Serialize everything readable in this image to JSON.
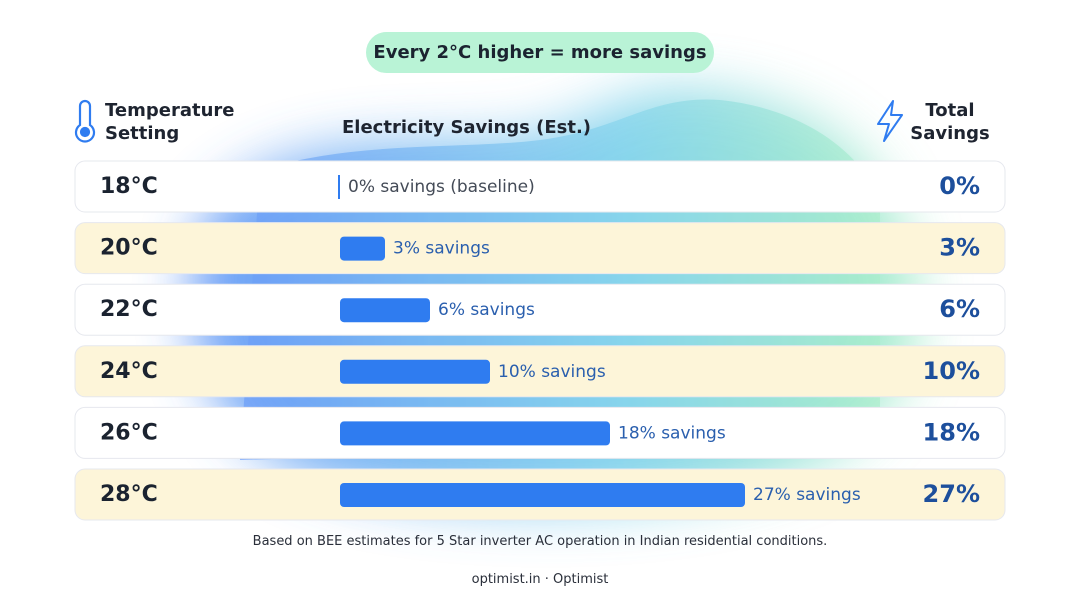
{
  "chart_data": {
    "type": "bar",
    "title": "Every 2°C higher = more savings",
    "category_header": "Temperature Setting",
    "value_header": "Electricity Savings (Est.)",
    "total_header": "Total Savings",
    "categories": [
      "18°C",
      "20°C",
      "22°C",
      "24°C",
      "26°C",
      "28°C"
    ],
    "values": [
      0,
      3,
      6,
      10,
      18,
      27
    ],
    "value_labels": [
      "0% savings (baseline)",
      "3% savings",
      "6% savings",
      "10% savings",
      "18% savings",
      "27% savings"
    ],
    "total_labels": [
      "0%",
      "3%",
      "6%",
      "10%",
      "18%",
      "27%"
    ],
    "color": "#2f7cf0",
    "note": "Based on BEE estimates for 5 Star inverter AC operation in Indian residential conditions.",
    "source": "optimist.in · Optimist"
  }
}
